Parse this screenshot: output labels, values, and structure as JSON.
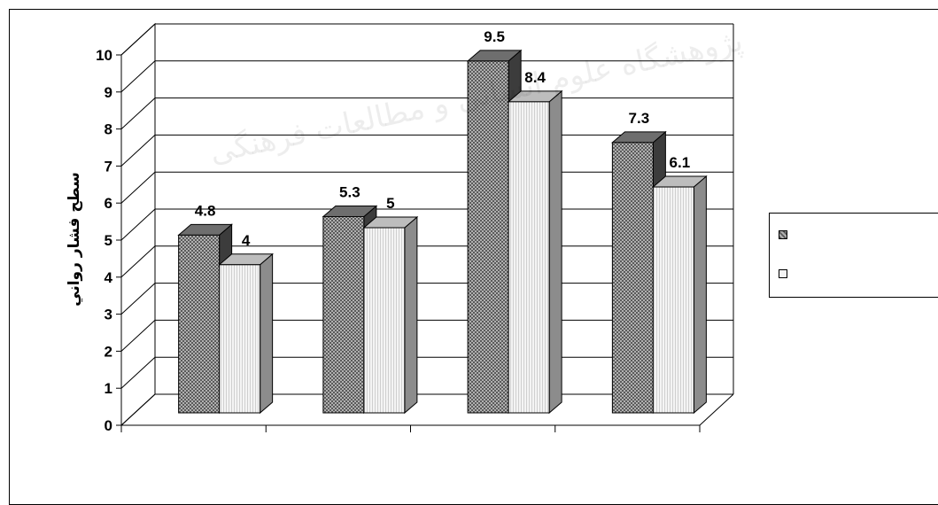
{
  "chart_data": {
    "type": "bar",
    "title": "",
    "xlabel": "",
    "ylabel": "سطح فشار رواني",
    "ylim": [
      0,
      10
    ],
    "yticks": [
      0,
      1,
      2,
      3,
      4,
      5,
      6,
      7,
      8,
      9,
      10
    ],
    "categories": [
      "",
      "",
      "",
      ""
    ],
    "series": [
      {
        "values": [
          4.8,
          5.3,
          9.5,
          7.3
        ],
        "color": "#8a8a8a"
      },
      {
        "values": [
          4,
          5,
          8.4,
          6.1
        ],
        "color": "#ececec"
      }
    ],
    "grid": true,
    "legend_position": "right",
    "data_labels": true
  },
  "background_watermark": "پژوهشگاه علوم انسانی و مطالعات فرهنگی"
}
